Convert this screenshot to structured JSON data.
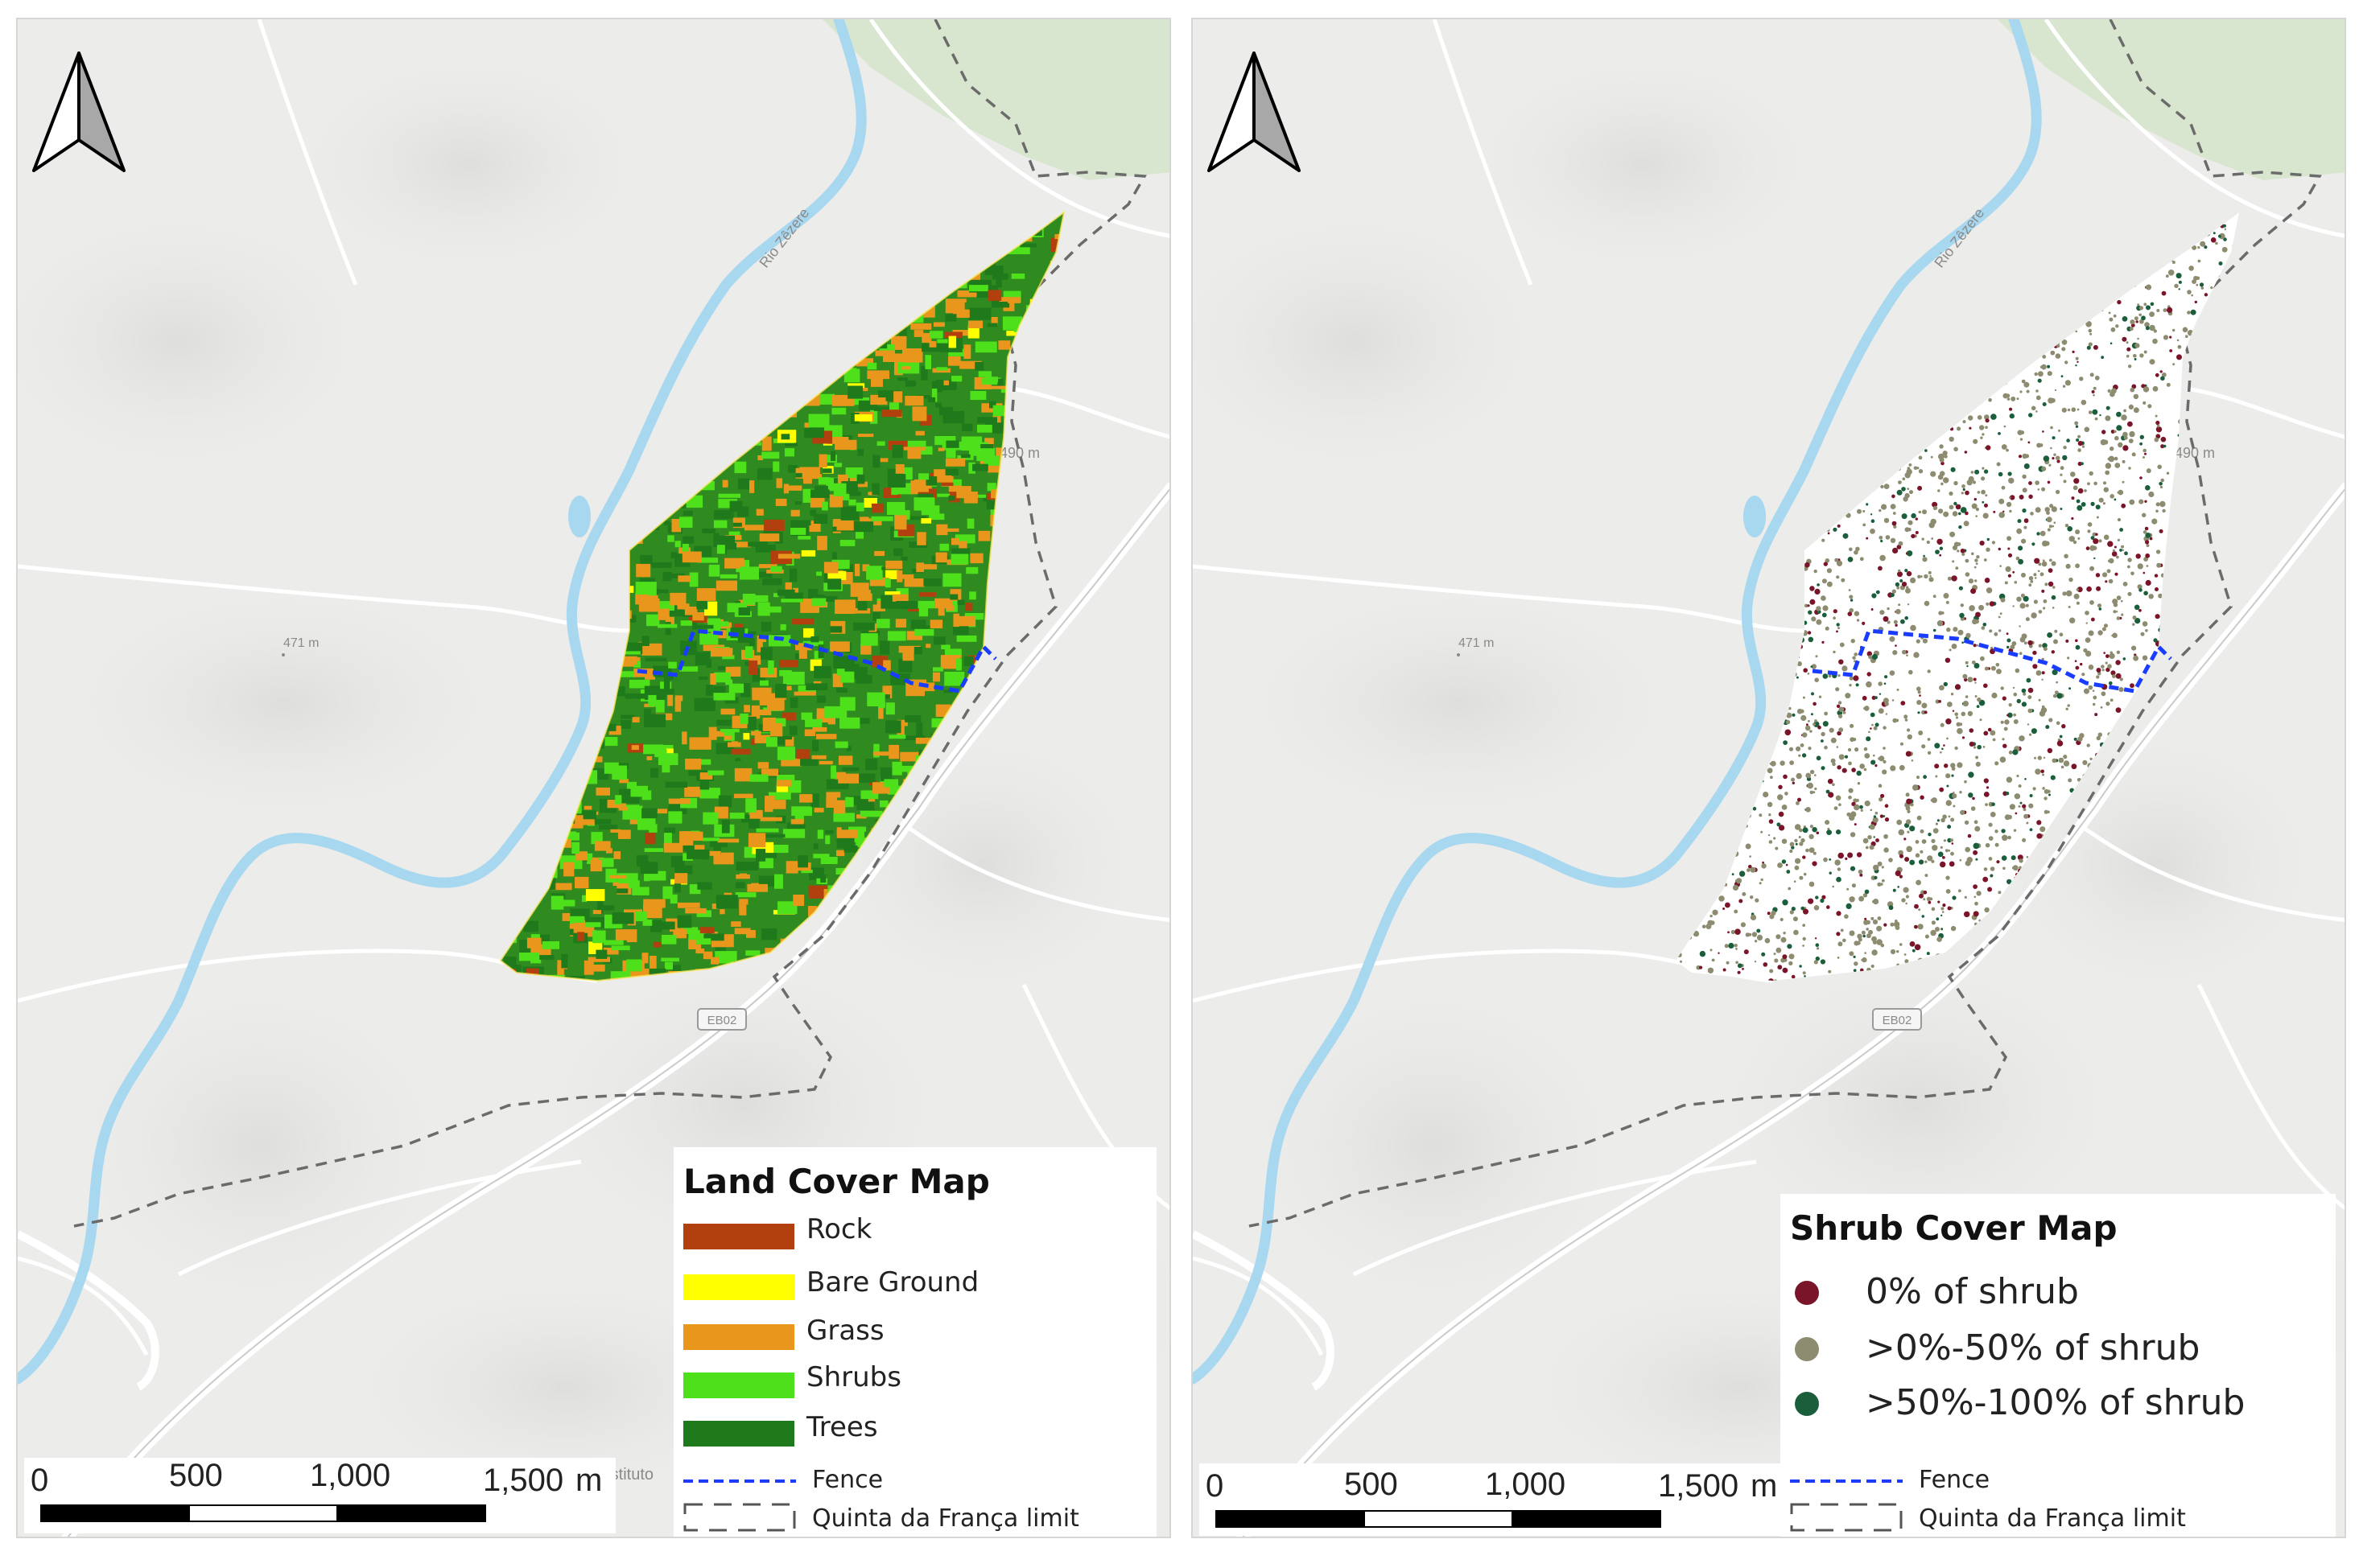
{
  "left_map": {
    "legend": {
      "title": "Land Cover Map",
      "items": [
        {
          "label": "Rock",
          "color": "#b2400e"
        },
        {
          "label": "Bare Ground",
          "color": "#ffff00"
        },
        {
          "label": "Grass",
          "color": "#e8961c"
        },
        {
          "label": "Shrubs",
          "color": "#4ee01a"
        },
        {
          "label": "Trees",
          "color": "#1e7a1a"
        }
      ],
      "fence_label": "Fence",
      "limit_label": "Quinta da França limit"
    },
    "scale": {
      "ticks": [
        "0",
        "500",
        "1,000",
        "1,500"
      ],
      "unit": "m"
    },
    "map_labels": {
      "river": "Rio Zêzere",
      "elev1": "490 m",
      "elev2": "471 m",
      "road": "EB02",
      "place": "Instituto"
    }
  },
  "right_map": {
    "legend": {
      "title": "Shrub Cover Map",
      "items": [
        {
          "label": "0% of shrub",
          "color": "#7a1428"
        },
        {
          "label": ">0%-50% of shrub",
          "color": "#8e8c70"
        },
        {
          "label": ">50%-100% of shrub",
          "color": "#1b5e3c"
        }
      ],
      "fence_label": "Fence",
      "limit_label": "Quinta da França limit"
    },
    "scale": {
      "ticks": [
        "0",
        "500",
        "1,000",
        "1,500"
      ],
      "unit": "m"
    },
    "map_labels": {
      "river": "Rio Zêzere",
      "elev1": "490 m",
      "elev2": "471 m",
      "road": "EB02"
    }
  },
  "colors": {
    "water": "#a8d8f0",
    "fence": "#1a3cff",
    "limit": "#555555",
    "basemap": "#ececea",
    "forest": "#d9e6cf"
  }
}
